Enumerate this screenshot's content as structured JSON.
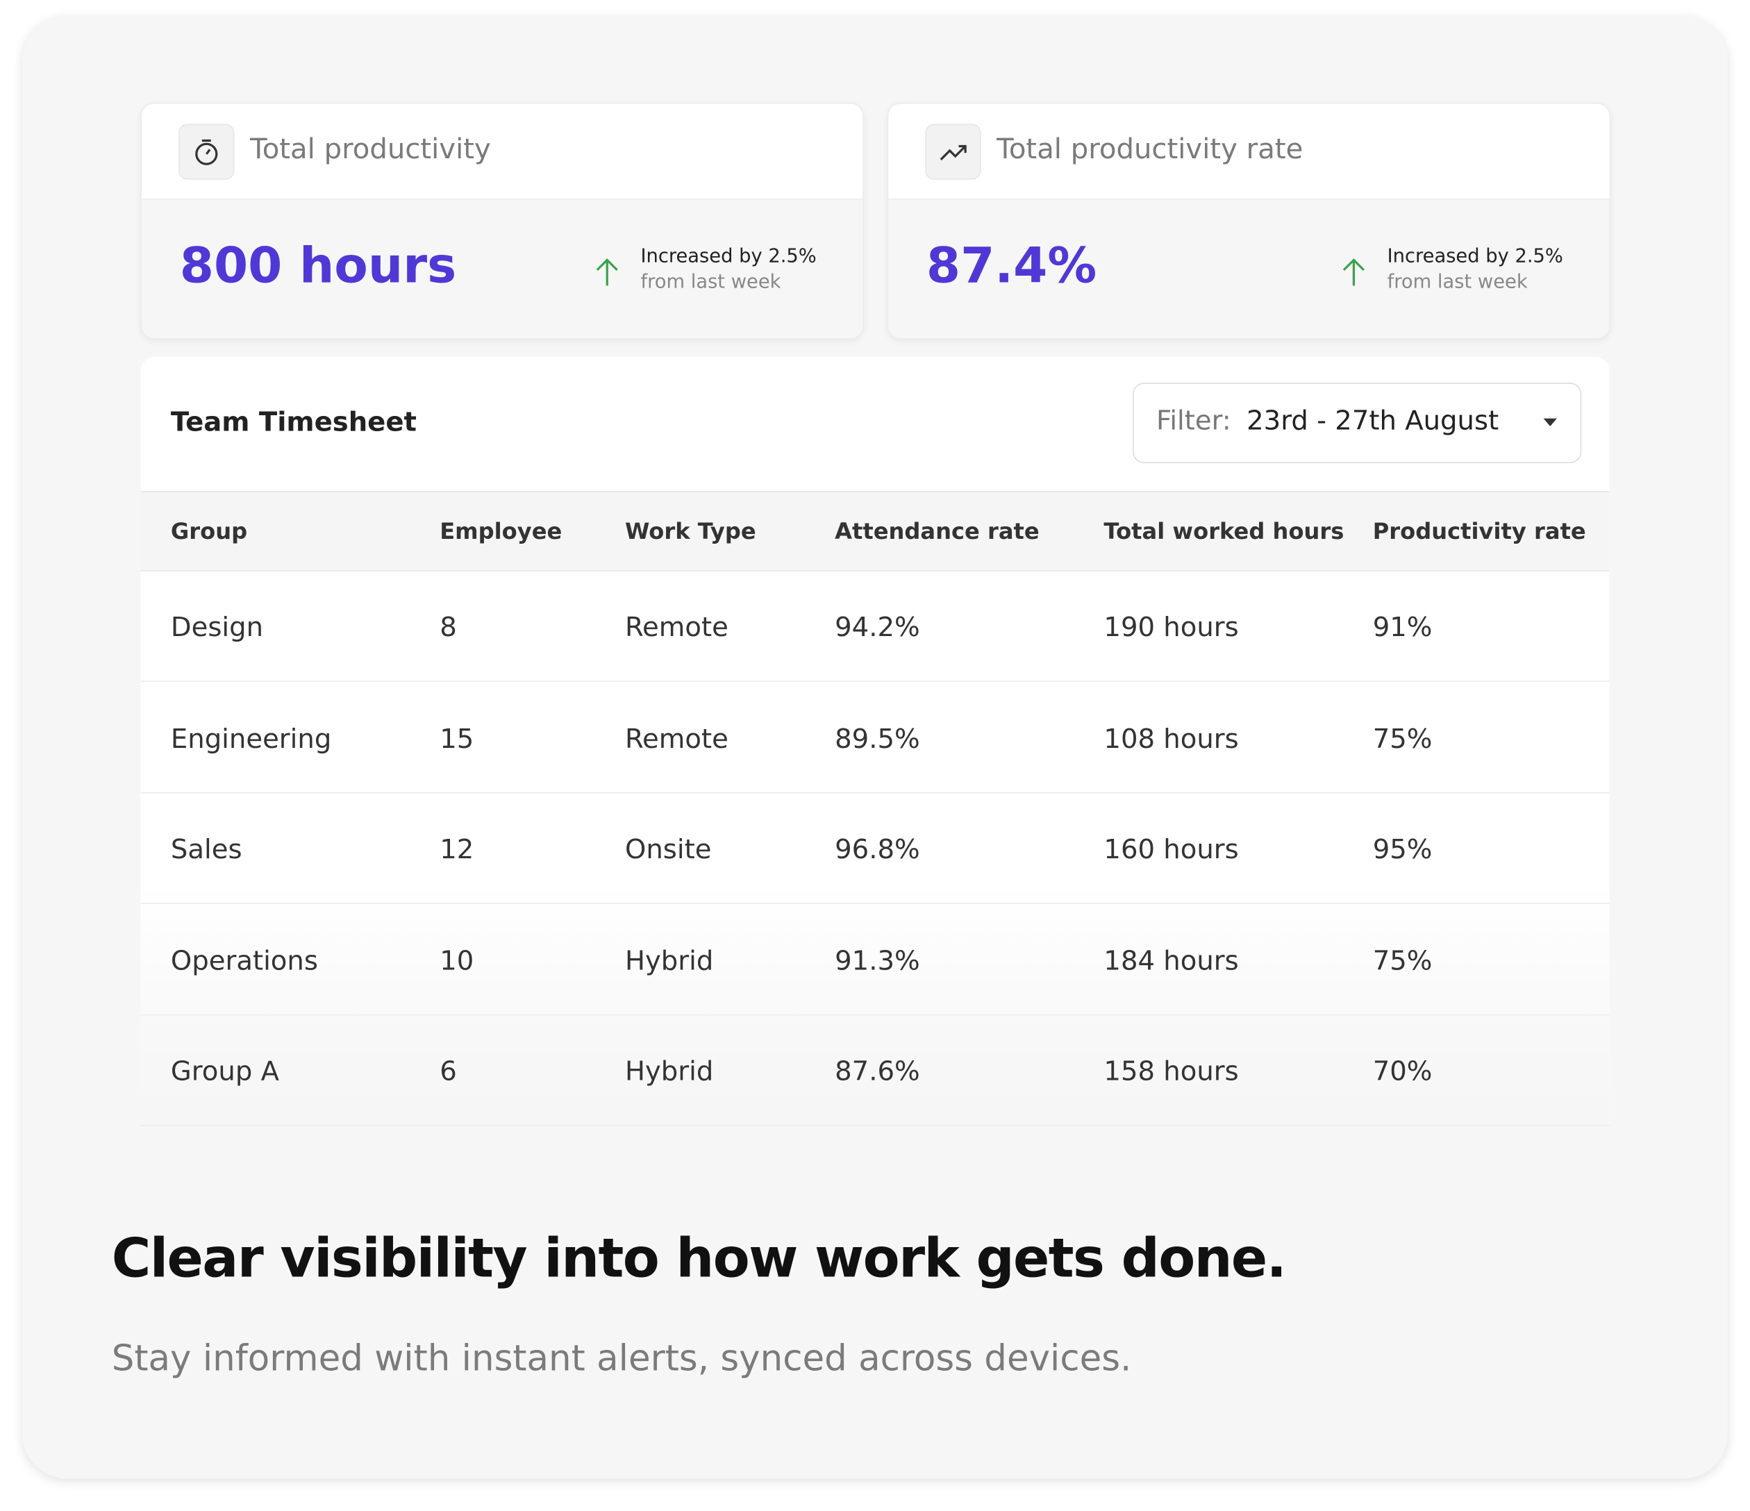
{
  "cards": [
    {
      "title": "Total productivity",
      "value": "800 hours",
      "change": "Increased by 2.5%",
      "period": "from last week"
    },
    {
      "title": "Total productivity rate",
      "value": "87.4%",
      "change": "Increased by 2.5%",
      "period": "from last week"
    }
  ],
  "table": {
    "title": "Team Timesheet",
    "filter_label": "Filter:",
    "filter_value": "23rd - 27th August",
    "columns": [
      "Group",
      "Employee",
      "Work Type",
      "Attendance rate",
      "Total worked hours",
      "Productivity rate"
    ],
    "rows": [
      [
        "Design",
        "8",
        "Remote",
        "94.2%",
        "190 hours",
        "91%"
      ],
      [
        "Engineering",
        "15",
        "Remote",
        "89.5%",
        "108 hours",
        "75%"
      ],
      [
        "Sales",
        "12",
        "Onsite",
        "96.8%",
        "160 hours",
        "95%"
      ],
      [
        "Operations",
        "10",
        "Hybrid",
        "91.3%",
        "184 hours",
        "75%"
      ],
      [
        "Group A",
        "6",
        "Hybrid",
        "87.6%",
        "158 hours",
        "70%"
      ]
    ]
  },
  "footer": {
    "heading": "Clear visibility into how work gets done.",
    "subheading": "Stay informed with instant alerts, synced across devices."
  }
}
